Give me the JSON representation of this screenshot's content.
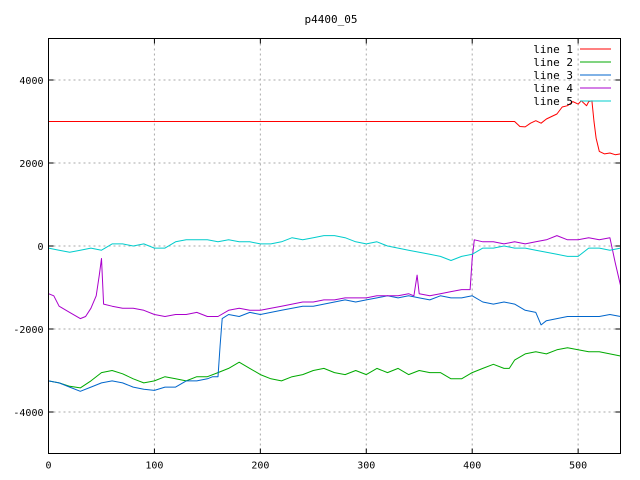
{
  "chart_data": {
    "type": "line",
    "title": "p4400_05",
    "xlim": [
      0,
      540
    ],
    "ylim": [
      -5000,
      5000
    ],
    "xticks": [
      0,
      100,
      200,
      300,
      400,
      500
    ],
    "yticks": [
      -4000,
      -2000,
      0,
      2000,
      4000
    ],
    "grid": true,
    "legend_position": "top-right",
    "series": [
      {
        "name": "line 1",
        "color": "#ff0000",
        "points": [
          [
            0,
            3000
          ],
          [
            440,
            3000
          ],
          [
            445,
            2880
          ],
          [
            450,
            2870
          ],
          [
            455,
            2960
          ],
          [
            460,
            3020
          ],
          [
            465,
            2960
          ],
          [
            470,
            3060
          ],
          [
            475,
            3120
          ],
          [
            480,
            3180
          ],
          [
            485,
            3350
          ],
          [
            490,
            3380
          ],
          [
            495,
            3480
          ],
          [
            500,
            3420
          ],
          [
            503,
            3500
          ],
          [
            505,
            3450
          ],
          [
            508,
            3380
          ],
          [
            510,
            3480
          ],
          [
            513,
            3500
          ],
          [
            515,
            3000
          ],
          [
            517,
            2600
          ],
          [
            520,
            2280
          ],
          [
            525,
            2220
          ],
          [
            530,
            2240
          ],
          [
            535,
            2200
          ],
          [
            540,
            2220
          ]
        ]
      },
      {
        "name": "line 2",
        "color": "#00aa00",
        "points": [
          [
            0,
            -3250
          ],
          [
            10,
            -3300
          ],
          [
            20,
            -3380
          ],
          [
            30,
            -3420
          ],
          [
            40,
            -3250
          ],
          [
            50,
            -3050
          ],
          [
            60,
            -3000
          ],
          [
            70,
            -3080
          ],
          [
            80,
            -3200
          ],
          [
            90,
            -3300
          ],
          [
            100,
            -3250
          ],
          [
            110,
            -3150
          ],
          [
            120,
            -3200
          ],
          [
            130,
            -3250
          ],
          [
            140,
            -3150
          ],
          [
            150,
            -3150
          ],
          [
            160,
            -3050
          ],
          [
            170,
            -2950
          ],
          [
            180,
            -2800
          ],
          [
            190,
            -2950
          ],
          [
            200,
            -3100
          ],
          [
            210,
            -3200
          ],
          [
            220,
            -3250
          ],
          [
            230,
            -3150
          ],
          [
            240,
            -3100
          ],
          [
            250,
            -3000
          ],
          [
            260,
            -2950
          ],
          [
            270,
            -3050
          ],
          [
            280,
            -3100
          ],
          [
            290,
            -3000
          ],
          [
            300,
            -3100
          ],
          [
            310,
            -2950
          ],
          [
            320,
            -3050
          ],
          [
            330,
            -2950
          ],
          [
            340,
            -3100
          ],
          [
            350,
            -3000
          ],
          [
            360,
            -3050
          ],
          [
            370,
            -3050
          ],
          [
            380,
            -3200
          ],
          [
            390,
            -3200
          ],
          [
            400,
            -3050
          ],
          [
            410,
            -2950
          ],
          [
            420,
            -2850
          ],
          [
            430,
            -2950
          ],
          [
            435,
            -2950
          ],
          [
            440,
            -2750
          ],
          [
            450,
            -2600
          ],
          [
            460,
            -2550
          ],
          [
            470,
            -2600
          ],
          [
            480,
            -2500
          ],
          [
            490,
            -2450
          ],
          [
            500,
            -2500
          ],
          [
            510,
            -2550
          ],
          [
            520,
            -2550
          ],
          [
            530,
            -2600
          ],
          [
            540,
            -2650
          ]
        ]
      },
      {
        "name": "line 3",
        "color": "#0066cc",
        "points": [
          [
            0,
            -3250
          ],
          [
            10,
            -3300
          ],
          [
            20,
            -3400
          ],
          [
            30,
            -3500
          ],
          [
            40,
            -3400
          ],
          [
            50,
            -3300
          ],
          [
            60,
            -3250
          ],
          [
            70,
            -3300
          ],
          [
            80,
            -3400
          ],
          [
            90,
            -3450
          ],
          [
            100,
            -3480
          ],
          [
            110,
            -3400
          ],
          [
            120,
            -3400
          ],
          [
            130,
            -3250
          ],
          [
            140,
            -3250
          ],
          [
            150,
            -3200
          ],
          [
            155,
            -3150
          ],
          [
            160,
            -3150
          ],
          [
            162,
            -2400
          ],
          [
            164,
            -1750
          ],
          [
            170,
            -1650
          ],
          [
            180,
            -1700
          ],
          [
            190,
            -1600
          ],
          [
            200,
            -1650
          ],
          [
            210,
            -1600
          ],
          [
            220,
            -1550
          ],
          [
            230,
            -1500
          ],
          [
            240,
            -1450
          ],
          [
            250,
            -1450
          ],
          [
            260,
            -1400
          ],
          [
            270,
            -1350
          ],
          [
            280,
            -1300
          ],
          [
            290,
            -1350
          ],
          [
            300,
            -1300
          ],
          [
            310,
            -1250
          ],
          [
            320,
            -1200
          ],
          [
            330,
            -1250
          ],
          [
            340,
            -1200
          ],
          [
            350,
            -1250
          ],
          [
            360,
            -1300
          ],
          [
            370,
            -1200
          ],
          [
            380,
            -1250
          ],
          [
            390,
            -1250
          ],
          [
            400,
            -1200
          ],
          [
            410,
            -1350
          ],
          [
            420,
            -1400
          ],
          [
            430,
            -1350
          ],
          [
            440,
            -1400
          ],
          [
            450,
            -1550
          ],
          [
            460,
            -1600
          ],
          [
            465,
            -1900
          ],
          [
            470,
            -1800
          ],
          [
            480,
            -1750
          ],
          [
            490,
            -1700
          ],
          [
            500,
            -1700
          ],
          [
            510,
            -1700
          ],
          [
            520,
            -1700
          ],
          [
            530,
            -1650
          ],
          [
            540,
            -1700
          ]
        ]
      },
      {
        "name": "line 4",
        "color": "#aa00cc",
        "points": [
          [
            0,
            -1150
          ],
          [
            5,
            -1200
          ],
          [
            10,
            -1450
          ],
          [
            20,
            -1600
          ],
          [
            30,
            -1750
          ],
          [
            35,
            -1700
          ],
          [
            40,
            -1500
          ],
          [
            45,
            -1200
          ],
          [
            48,
            -700
          ],
          [
            50,
            -300
          ],
          [
            52,
            -1400
          ],
          [
            60,
            -1450
          ],
          [
            70,
            -1500
          ],
          [
            80,
            -1500
          ],
          [
            90,
            -1550
          ],
          [
            100,
            -1650
          ],
          [
            110,
            -1700
          ],
          [
            120,
            -1650
          ],
          [
            130,
            -1650
          ],
          [
            140,
            -1600
          ],
          [
            150,
            -1700
          ],
          [
            160,
            -1700
          ],
          [
            170,
            -1550
          ],
          [
            180,
            -1500
          ],
          [
            190,
            -1550
          ],
          [
            200,
            -1550
          ],
          [
            210,
            -1500
          ],
          [
            220,
            -1450
          ],
          [
            230,
            -1400
          ],
          [
            240,
            -1350
          ],
          [
            250,
            -1350
          ],
          [
            260,
            -1300
          ],
          [
            270,
            -1300
          ],
          [
            280,
            -1250
          ],
          [
            290,
            -1250
          ],
          [
            300,
            -1250
          ],
          [
            310,
            -1200
          ],
          [
            320,
            -1200
          ],
          [
            330,
            -1200
          ],
          [
            340,
            -1150
          ],
          [
            345,
            -1200
          ],
          [
            348,
            -700
          ],
          [
            350,
            -1150
          ],
          [
            360,
            -1200
          ],
          [
            370,
            -1150
          ],
          [
            380,
            -1100
          ],
          [
            390,
            -1050
          ],
          [
            398,
            -1050
          ],
          [
            400,
            -300
          ],
          [
            402,
            150
          ],
          [
            410,
            100
          ],
          [
            420,
            100
          ],
          [
            430,
            50
          ],
          [
            440,
            100
          ],
          [
            450,
            50
          ],
          [
            460,
            100
          ],
          [
            470,
            150
          ],
          [
            480,
            250
          ],
          [
            490,
            150
          ],
          [
            500,
            150
          ],
          [
            510,
            200
          ],
          [
            520,
            150
          ],
          [
            530,
            200
          ],
          [
            535,
            -400
          ],
          [
            540,
            -950
          ]
        ]
      },
      {
        "name": "line 5",
        "color": "#00cccc",
        "points": [
          [
            0,
            -50
          ],
          [
            10,
            -100
          ],
          [
            20,
            -150
          ],
          [
            30,
            -100
          ],
          [
            40,
            -50
          ],
          [
            50,
            -100
          ],
          [
            60,
            50
          ],
          [
            70,
            50
          ],
          [
            80,
            0
          ],
          [
            90,
            50
          ],
          [
            100,
            -50
          ],
          [
            110,
            -50
          ],
          [
            120,
            100
          ],
          [
            130,
            150
          ],
          [
            140,
            150
          ],
          [
            150,
            150
          ],
          [
            160,
            100
          ],
          [
            170,
            150
          ],
          [
            180,
            100
          ],
          [
            190,
            100
          ],
          [
            200,
            50
          ],
          [
            210,
            50
          ],
          [
            220,
            100
          ],
          [
            230,
            200
          ],
          [
            240,
            150
          ],
          [
            250,
            200
          ],
          [
            260,
            250
          ],
          [
            270,
            250
          ],
          [
            280,
            200
          ],
          [
            290,
            100
          ],
          [
            300,
            50
          ],
          [
            310,
            100
          ],
          [
            320,
            0
          ],
          [
            330,
            -50
          ],
          [
            340,
            -100
          ],
          [
            350,
            -150
          ],
          [
            360,
            -200
          ],
          [
            370,
            -250
          ],
          [
            380,
            -350
          ],
          [
            390,
            -250
          ],
          [
            400,
            -200
          ],
          [
            410,
            -50
          ],
          [
            420,
            -50
          ],
          [
            430,
            0
          ],
          [
            440,
            -50
          ],
          [
            450,
            -50
          ],
          [
            460,
            -100
          ],
          [
            470,
            -150
          ],
          [
            480,
            -200
          ],
          [
            490,
            -250
          ],
          [
            500,
            -250
          ],
          [
            510,
            -50
          ],
          [
            520,
            -50
          ],
          [
            530,
            -100
          ],
          [
            540,
            -50
          ]
        ]
      }
    ]
  }
}
